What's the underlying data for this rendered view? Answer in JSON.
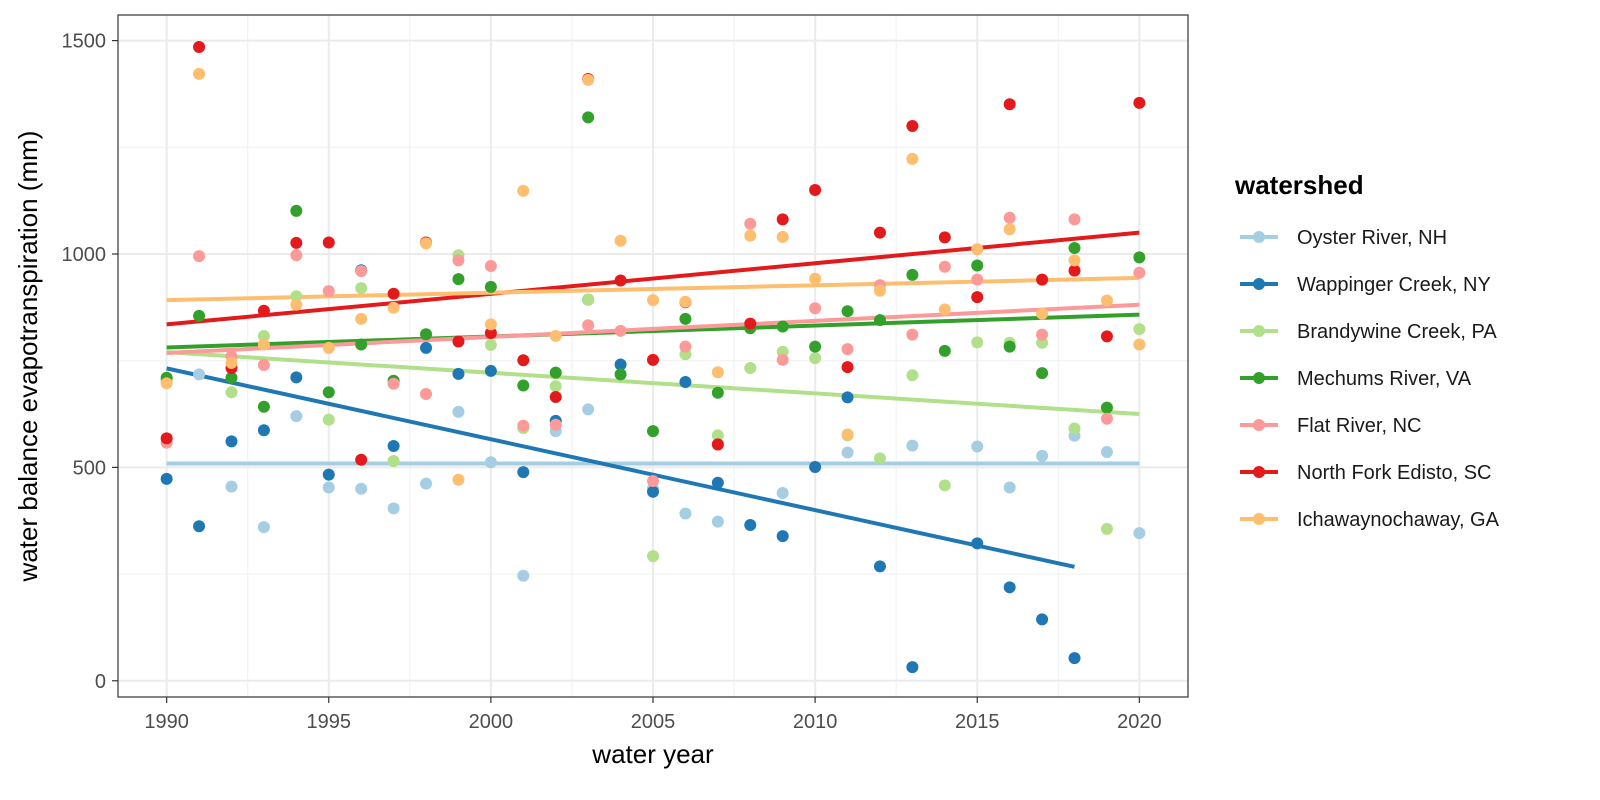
{
  "chart_data": {
    "type": "scatter",
    "xlabel": "water year",
    "ylabel": "water balance evapotranspiration (mm)",
    "xlim": [
      1988.5,
      2021.5
    ],
    "ylim": [
      -38,
      1560
    ],
    "x_ticks": [
      1990,
      1995,
      2000,
      2005,
      2010,
      2015,
      2020
    ],
    "y_ticks": [
      0,
      500,
      1000,
      1500
    ],
    "grid": true,
    "legend_title": "watershed",
    "legend_position": "right",
    "series": [
      {
        "name": "Oyster River, NH",
        "color": "#A6CEE3",
        "points": [
          [
            1990,
            700
          ],
          [
            1991,
            718
          ],
          [
            1992,
            455
          ],
          [
            1993,
            360
          ],
          [
            1994,
            620
          ],
          [
            1995,
            453
          ],
          [
            1996,
            450
          ],
          [
            1997,
            404
          ],
          [
            1998,
            462
          ],
          [
            1999,
            630
          ],
          [
            2000,
            512
          ],
          [
            2001,
            246
          ],
          [
            2002,
            585
          ],
          [
            2003,
            636
          ],
          [
            2005,
            450
          ],
          [
            2006,
            392
          ],
          [
            2007,
            373
          ],
          [
            2009,
            440
          ],
          [
            2011,
            535
          ],
          [
            2013,
            551
          ],
          [
            2015,
            549
          ],
          [
            2016,
            453
          ],
          [
            2017,
            527
          ],
          [
            2018,
            574
          ],
          [
            2019,
            536
          ],
          [
            2020,
            346
          ]
        ],
        "trend": [
          [
            1990,
            509
          ],
          [
            2020,
            509
          ]
        ]
      },
      {
        "name": "Wappinger Creek, NY",
        "color": "#1F78B4",
        "points": [
          [
            1990,
            473
          ],
          [
            1991,
            362
          ],
          [
            1992,
            561
          ],
          [
            1993,
            587
          ],
          [
            1994,
            711
          ],
          [
            1995,
            483
          ],
          [
            1996,
            962
          ],
          [
            1997,
            550
          ],
          [
            1998,
            780
          ],
          [
            1999,
            719
          ],
          [
            2000,
            726
          ],
          [
            2001,
            489
          ],
          [
            2002,
            609
          ],
          [
            2003,
            893
          ],
          [
            2004,
            741
          ],
          [
            2005,
            443
          ],
          [
            2006,
            700
          ],
          [
            2007,
            464
          ],
          [
            2008,
            365
          ],
          [
            2009,
            339
          ],
          [
            2010,
            501
          ],
          [
            2011,
            664
          ],
          [
            2012,
            268
          ],
          [
            2013,
            32
          ],
          [
            2015,
            322
          ],
          [
            2016,
            219
          ],
          [
            2017,
            144
          ],
          [
            2018,
            53
          ]
        ],
        "trend": [
          [
            1990,
            732
          ],
          [
            2018,
            267
          ]
        ]
      },
      {
        "name": "Brandywine Creek, PA",
        "color": "#B2DF8A",
        "points": [
          [
            1990,
            705
          ],
          [
            1992,
            676
          ],
          [
            1993,
            808
          ],
          [
            1994,
            901
          ],
          [
            1995,
            612
          ],
          [
            1996,
            920
          ],
          [
            1997,
            515
          ],
          [
            1999,
            997
          ],
          [
            2000,
            787
          ],
          [
            2001,
            592
          ],
          [
            2002,
            690
          ],
          [
            2003,
            893
          ],
          [
            2005,
            292
          ],
          [
            2006,
            765
          ],
          [
            2007,
            575
          ],
          [
            2008,
            733
          ],
          [
            2009,
            771
          ],
          [
            2010,
            756
          ],
          [
            2011,
            575
          ],
          [
            2012,
            521
          ],
          [
            2013,
            716
          ],
          [
            2014,
            458
          ],
          [
            2015,
            793
          ],
          [
            2016,
            792
          ],
          [
            2017,
            792
          ],
          [
            2018,
            591
          ],
          [
            2019,
            356
          ],
          [
            2020,
            824
          ]
        ],
        "trend": [
          [
            1990,
            770
          ],
          [
            2020,
            625
          ]
        ]
      },
      {
        "name": "Mechums River, VA",
        "color": "#33A02C",
        "points": [
          [
            1990,
            710
          ],
          [
            1991,
            855
          ],
          [
            1992,
            710
          ],
          [
            1993,
            642
          ],
          [
            1994,
            1101
          ],
          [
            1995,
            676
          ],
          [
            1996,
            788
          ],
          [
            1997,
            703
          ],
          [
            1998,
            812
          ],
          [
            1999,
            941
          ],
          [
            2000,
            923
          ],
          [
            2001,
            692
          ],
          [
            2002,
            722
          ],
          [
            2003,
            1320
          ],
          [
            2004,
            718
          ],
          [
            2005,
            585
          ],
          [
            2006,
            848
          ],
          [
            2007,
            675
          ],
          [
            2008,
            826
          ],
          [
            2009,
            830
          ],
          [
            2010,
            783
          ],
          [
            2011,
            866
          ],
          [
            2012,
            845
          ],
          [
            2013,
            951
          ],
          [
            2014,
            773
          ],
          [
            2015,
            973
          ],
          [
            2016,
            783
          ],
          [
            2017,
            721
          ],
          [
            2018,
            1014
          ],
          [
            2019,
            640
          ],
          [
            2020,
            992
          ]
        ],
        "trend": [
          [
            1990,
            781
          ],
          [
            2020,
            858
          ]
        ]
      },
      {
        "name": "Flat River, NC",
        "color": "#FB9A99",
        "points": [
          [
            1990,
            558
          ],
          [
            1991,
            995
          ],
          [
            1992,
            760
          ],
          [
            1993,
            740
          ],
          [
            1994,
            997
          ],
          [
            1995,
            913
          ],
          [
            1996,
            960
          ],
          [
            1997,
            696
          ],
          [
            1998,
            672
          ],
          [
            1999,
            985
          ],
          [
            2000,
            972
          ],
          [
            2001,
            598
          ],
          [
            2002,
            600
          ],
          [
            2003,
            833
          ],
          [
            2004,
            820
          ],
          [
            2005,
            468
          ],
          [
            2006,
            783
          ],
          [
            2007,
            553
          ],
          [
            2008,
            1071
          ],
          [
            2009,
            752
          ],
          [
            2010,
            873
          ],
          [
            2011,
            777
          ],
          [
            2012,
            927
          ],
          [
            2013,
            811
          ],
          [
            2014,
            970
          ],
          [
            2015,
            940
          ],
          [
            2016,
            1085
          ],
          [
            2017,
            811
          ],
          [
            2018,
            1081
          ],
          [
            2019,
            614
          ],
          [
            2020,
            956
          ]
        ],
        "trend": [
          [
            1990,
            768
          ],
          [
            2020,
            881
          ]
        ]
      },
      {
        "name": "North Fork Edisto, SC",
        "color": "#E31A1C",
        "points": [
          [
            1990,
            568
          ],
          [
            1991,
            1485
          ],
          [
            1992,
            733
          ],
          [
            1993,
            867
          ],
          [
            1994,
            1026
          ],
          [
            1995,
            1027
          ],
          [
            1996,
            518
          ],
          [
            1997,
            907
          ],
          [
            1998,
            1027
          ],
          [
            1999,
            795
          ],
          [
            2000,
            815
          ],
          [
            2001,
            751
          ],
          [
            2002,
            665
          ],
          [
            2003,
            1410
          ],
          [
            2004,
            938
          ],
          [
            2005,
            752
          ],
          [
            2006,
            887
          ],
          [
            2007,
            554
          ],
          [
            2008,
            837
          ],
          [
            2009,
            1081
          ],
          [
            2010,
            1150
          ],
          [
            2011,
            735
          ],
          [
            2012,
            1050
          ],
          [
            2013,
            1300
          ],
          [
            2014,
            1039
          ],
          [
            2015,
            899
          ],
          [
            2016,
            1351
          ],
          [
            2017,
            940
          ],
          [
            2018,
            961
          ],
          [
            2019,
            807
          ],
          [
            2020,
            1354
          ]
        ],
        "trend": [
          [
            1990,
            835
          ],
          [
            2020,
            1050
          ]
        ]
      },
      {
        "name": "Ichawaynochaway, GA",
        "color": "#FDBF6F",
        "points": [
          [
            1990,
            697
          ],
          [
            1991,
            1422
          ],
          [
            1992,
            745
          ],
          [
            1993,
            788
          ],
          [
            1994,
            881
          ],
          [
            1995,
            780
          ],
          [
            1996,
            848
          ],
          [
            1997,
            874
          ],
          [
            1998,
            1025
          ],
          [
            1999,
            471
          ],
          [
            2000,
            835
          ],
          [
            2001,
            1148
          ],
          [
            2002,
            808
          ],
          [
            2003,
            1408
          ],
          [
            2004,
            1031
          ],
          [
            2005,
            892
          ],
          [
            2006,
            888
          ],
          [
            2007,
            723
          ],
          [
            2008,
            1043
          ],
          [
            2009,
            1040
          ],
          [
            2010,
            942
          ],
          [
            2011,
            577
          ],
          [
            2012,
            914
          ],
          [
            2013,
            1223
          ],
          [
            2014,
            870
          ],
          [
            2015,
            1011
          ],
          [
            2016,
            1058
          ],
          [
            2017,
            860
          ],
          [
            2018,
            985
          ],
          [
            2019,
            891
          ],
          [
            2020,
            788
          ]
        ],
        "trend": [
          [
            1990,
            892
          ],
          [
            2020,
            944
          ]
        ]
      }
    ]
  }
}
